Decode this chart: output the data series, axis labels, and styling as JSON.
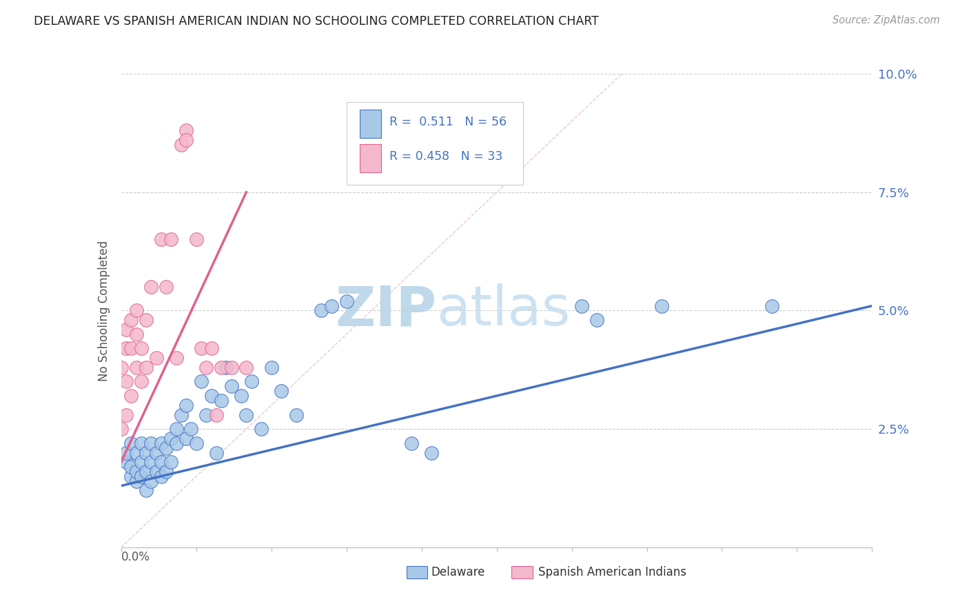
{
  "title": "DELAWARE VS SPANISH AMERICAN INDIAN NO SCHOOLING COMPLETED CORRELATION CHART",
  "source": "Source: ZipAtlas.com",
  "ylabel": "No Schooling Completed",
  "yticks": [
    0.0,
    0.025,
    0.05,
    0.075,
    0.1
  ],
  "ytick_labels": [
    "",
    "2.5%",
    "5.0%",
    "7.5%",
    "10.0%"
  ],
  "xlim": [
    0.0,
    0.15
  ],
  "ylim": [
    0.0,
    0.1
  ],
  "color_delaware": "#a8c8e8",
  "color_spanish": "#f4b8cc",
  "color_line_delaware": "#4472c4",
  "color_line_spanish": "#e06090",
  "color_title": "#222222",
  "color_source": "#999999",
  "color_ytick": "#4472c4",
  "watermark_color": "#ddeef8",
  "background_color": "#ffffff",
  "grid_color": "#cccccc",
  "delaware_x": [
    0.001,
    0.001,
    0.002,
    0.002,
    0.002,
    0.003,
    0.003,
    0.003,
    0.004,
    0.004,
    0.004,
    0.005,
    0.005,
    0.005,
    0.006,
    0.006,
    0.006,
    0.007,
    0.007,
    0.008,
    0.008,
    0.008,
    0.009,
    0.009,
    0.01,
    0.01,
    0.011,
    0.011,
    0.012,
    0.013,
    0.013,
    0.014,
    0.015,
    0.016,
    0.017,
    0.018,
    0.019,
    0.02,
    0.021,
    0.022,
    0.024,
    0.025,
    0.026,
    0.028,
    0.03,
    0.032,
    0.035,
    0.04,
    0.042,
    0.045,
    0.058,
    0.062,
    0.092,
    0.095,
    0.108,
    0.13
  ],
  "delaware_y": [
    0.018,
    0.02,
    0.015,
    0.017,
    0.022,
    0.014,
    0.016,
    0.02,
    0.015,
    0.018,
    0.022,
    0.012,
    0.016,
    0.02,
    0.014,
    0.018,
    0.022,
    0.016,
    0.02,
    0.015,
    0.018,
    0.022,
    0.016,
    0.021,
    0.018,
    0.023,
    0.025,
    0.022,
    0.028,
    0.023,
    0.03,
    0.025,
    0.022,
    0.035,
    0.028,
    0.032,
    0.02,
    0.031,
    0.038,
    0.034,
    0.032,
    0.028,
    0.035,
    0.025,
    0.038,
    0.033,
    0.028,
    0.05,
    0.051,
    0.052,
    0.022,
    0.02,
    0.051,
    0.048,
    0.051,
    0.051
  ],
  "spanish_x": [
    0.0,
    0.0,
    0.001,
    0.001,
    0.001,
    0.001,
    0.002,
    0.002,
    0.002,
    0.003,
    0.003,
    0.003,
    0.004,
    0.004,
    0.005,
    0.005,
    0.006,
    0.007,
    0.008,
    0.009,
    0.01,
    0.011,
    0.012,
    0.013,
    0.013,
    0.015,
    0.016,
    0.017,
    0.018,
    0.019,
    0.02,
    0.022,
    0.025
  ],
  "spanish_y": [
    0.025,
    0.038,
    0.028,
    0.035,
    0.042,
    0.046,
    0.032,
    0.042,
    0.048,
    0.038,
    0.045,
    0.05,
    0.035,
    0.042,
    0.038,
    0.048,
    0.055,
    0.04,
    0.065,
    0.055,
    0.065,
    0.04,
    0.085,
    0.088,
    0.086,
    0.065,
    0.042,
    0.038,
    0.042,
    0.028,
    0.038,
    0.038,
    0.038
  ],
  "del_line_x": [
    0.0,
    0.15
  ],
  "del_line_y": [
    0.013,
    0.051
  ],
  "spa_line_x": [
    0.0,
    0.025
  ],
  "spa_line_y": [
    0.018,
    0.075
  ]
}
